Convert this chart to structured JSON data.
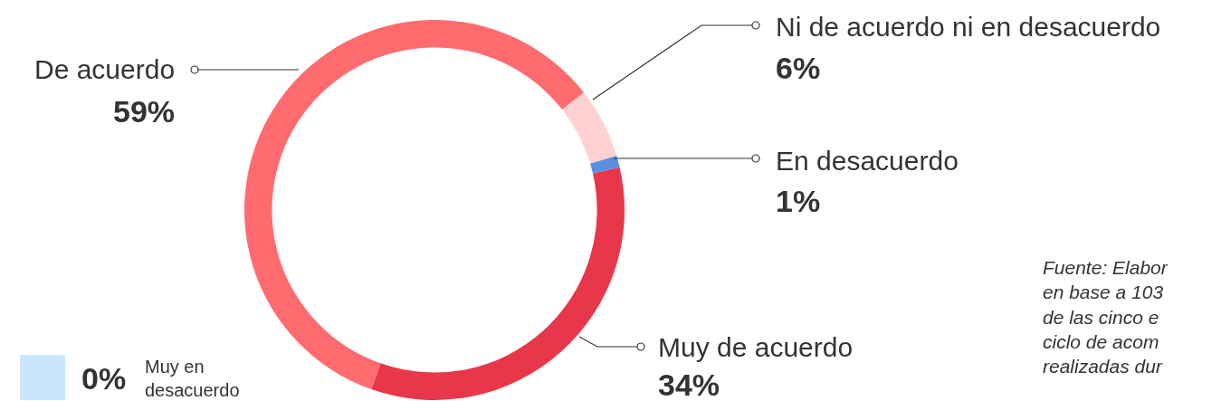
{
  "chart_data": {
    "type": "donut",
    "categories": [
      "Muy de acuerdo",
      "De acuerdo",
      "Ni de acuerdo ni en desacuerdo",
      "En desacuerdo",
      "Muy en desacuerdo"
    ],
    "values": [
      34,
      59,
      6,
      1,
      0
    ],
    "colors": [
      "#e8374a",
      "#ff6b6f",
      "#ffd1d2",
      "#5b8fde",
      "#cbe6fb"
    ],
    "value_labels": [
      "34%",
      "59%",
      "6%",
      "1%",
      "0%"
    ],
    "annotations": [
      "Fuente: Elabor\nen base a 103\nde las cinco e\nciclo de acom\nrealizadas dur"
    ],
    "legend": false
  }
}
